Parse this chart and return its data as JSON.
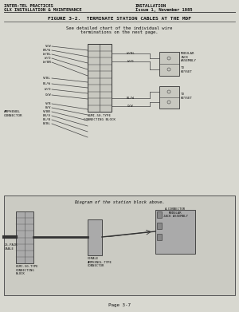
{
  "bg_color": "#d8d8d0",
  "header_left1": "INTER-TEL PRACTICES",
  "header_left2": "GLX INSTALLATION & MAINTENANCE",
  "header_right1": "INSTALLATION",
  "header_right2": "Issue 1, November 1985",
  "figure_title": "FIGURE 3-2.  TERMINATE STATION CABLES AT THE MDF",
  "subtitle1": "See detailed chart of the individual wire",
  "subtitle2": "terminations on the next page.",
  "footer": "Page 3-7",
  "label_amphenol": "AMPHENOL\nCONNECTOR",
  "label_66mi_top": "66MI-50-TYPE\nCONNECTING BLOCK",
  "label_modular": "MODULAR\nJACK\nASSEMBLY",
  "label_keyset_top": "TO\nKEYSET",
  "label_keyset_bot": "TO\nKEYSET",
  "label_diagram": "Diagram of the station block above.",
  "wires_top_left": [
    "V/W",
    "BR/W",
    "W/BL",
    "W/O",
    "W/BR"
  ],
  "wires_bot_left": [
    "V/BL",
    "BL/W",
    "W/O",
    "O/W"
  ],
  "wires_bot_left2": [
    "V/B",
    "B/V",
    "V/BR",
    "BR/V",
    "BL/B",
    "B/BL"
  ],
  "wire_top_right1": "W/BL",
  "wire_top_right2": "W/O",
  "wire_bot_right1": "BL/W",
  "wire_bot_right2": "O/W"
}
